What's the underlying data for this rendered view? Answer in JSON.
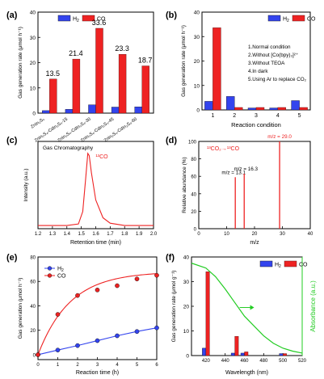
{
  "colors": {
    "h2": "#3344ee",
    "co": "#ee2222",
    "green": "#22cc22",
    "axis": "#000000"
  },
  "chart_data": [
    {
      "panel": "(a)",
      "type": "bar",
      "ylabel": "Gas generation rate (μmol h⁻¹)",
      "ylim": [
        0,
        40
      ],
      "yticks": [
        0,
        10,
        20,
        30,
        40
      ],
      "legend": [
        "H₂",
        "CO"
      ],
      "categories": [
        "ZnIn₂S₄",
        "ZnIn₂S₄-CdIn₂S₄-15",
        "ZnIn₂S₄-CdIn₂S₄-30",
        "ZnIn₂S₄-CdIn₂S₄-45",
        "ZnIn₂S₄-CdIn₂S₄-60"
      ],
      "series": [
        {
          "name": "H₂",
          "values": [
            1.0,
            1.5,
            3.3,
            2.4,
            2.5
          ]
        },
        {
          "name": "CO",
          "values": [
            13.5,
            21.4,
            33.6,
            23.3,
            18.7
          ]
        }
      ],
      "data_labels": [
        "13.5",
        "21.4",
        "33.6",
        "23.3",
        "18.7"
      ]
    },
    {
      "panel": "(b)",
      "type": "bar",
      "xlabel": "Reaction condition",
      "ylabel": "Gas generation rate (μmol h⁻¹)",
      "ylim": [
        0,
        40
      ],
      "yticks": [
        0,
        10,
        20,
        30,
        40
      ],
      "legend": [
        "H₂",
        "CO"
      ],
      "categories": [
        "1",
        "2",
        "3",
        "4",
        "5"
      ],
      "series": [
        {
          "name": "H₂",
          "values": [
            3.5,
            5.5,
            0.8,
            0.8,
            3.8
          ]
        },
        {
          "name": "CO",
          "values": [
            33.6,
            1.0,
            1.0,
            1.0,
            1.0
          ]
        }
      ],
      "annotations": [
        "1.Normal condition",
        "2.Without [Co(bpy)₃]²⁺",
        "3.Without TEOA",
        "4.In dark",
        "5.Using Ar to replace CO₂"
      ]
    },
    {
      "panel": "(c)",
      "type": "line",
      "title": "Gas Chromatography",
      "xlabel": "Retention time (min)",
      "ylabel": "Intensity (a.u.)",
      "xlim": [
        1.2,
        2.0
      ],
      "xticks": [
        "1.2",
        "1.3",
        "1.4",
        "1.5",
        "1.6",
        "1.7",
        "1.8",
        "1.9",
        "2.0"
      ],
      "peak_label": "¹³CO",
      "x": [
        1.2,
        1.4,
        1.48,
        1.51,
        1.53,
        1.545,
        1.555,
        1.57,
        1.6,
        1.65,
        1.7,
        1.8,
        1.9,
        2.0
      ],
      "y": [
        0.02,
        0.02,
        0.04,
        0.2,
        0.62,
        0.95,
        0.92,
        0.7,
        0.35,
        0.12,
        0.05,
        0.02,
        0.02,
        0.02
      ]
    },
    {
      "panel": "(d)",
      "type": "bar",
      "xlabel": "m/z",
      "ylabel": "Relative abundance (%)",
      "xlim": [
        0,
        40
      ],
      "xticks": [
        0,
        10,
        20,
        30,
        40
      ],
      "ylim": [
        0,
        100
      ],
      "yticks": [
        0,
        20,
        40,
        60,
        80,
        100
      ],
      "annotation": "¹³CO₂→¹³CO",
      "peaks": [
        {
          "mz": 13.1,
          "abundance": 59,
          "label": "m/z = 13.1"
        },
        {
          "mz": 16.3,
          "abundance": 63,
          "label": "m/z = 16.3"
        },
        {
          "mz": 29.0,
          "abundance": 100,
          "label": "m/z = 29.0"
        }
      ]
    },
    {
      "panel": "(e)",
      "type": "line",
      "xlabel": "Reaction time (h)",
      "ylabel": "Gas generation (μmol h⁻¹)",
      "xlim": [
        0,
        6
      ],
      "xticks": [
        0,
        1,
        2,
        3,
        4,
        5,
        6
      ],
      "ylim": [
        -4,
        80
      ],
      "yticks": [
        0,
        20,
        40,
        60,
        80
      ],
      "x": [
        0,
        1,
        2,
        3,
        4,
        5,
        6
      ],
      "series": [
        {
          "name": "H₂",
          "values": [
            0,
            3.8,
            7.5,
            11.5,
            15.5,
            19.0,
            22.0
          ]
        },
        {
          "name": "CO",
          "values": [
            0,
            33.0,
            48.5,
            53.0,
            56.5,
            62.0,
            65.0
          ]
        }
      ]
    },
    {
      "panel": "(f)",
      "type": "bar",
      "xlabel": "Wavelength (nm)",
      "ylabel": "Gas generation rate (μmol g⁻¹)",
      "y2label": "Absorbance (a.u.)",
      "xlim": [
        405,
        520
      ],
      "xticks": [
        420,
        440,
        460,
        480,
        500,
        520
      ],
      "ylim": [
        0,
        40
      ],
      "yticks": [
        0,
        10,
        20,
        30,
        40
      ],
      "legend": [
        "H₂",
        "CO"
      ],
      "categories": [
        420,
        450,
        460,
        500
      ],
      "series": [
        {
          "name": "H₂",
          "values": [
            3.0,
            1.0,
            1.0,
            0.8
          ]
        },
        {
          "name": "CO",
          "values": [
            34.0,
            7.8,
            1.5,
            0.8
          ]
        }
      ],
      "absorbance": {
        "x": [
          405,
          420,
          430,
          440,
          450,
          460,
          470,
          480,
          490,
          500,
          510,
          520
        ],
        "y": [
          37.5,
          35.5,
          32.0,
          27.0,
          21.5,
          16.0,
          12.0,
          8.0,
          5.0,
          3.0,
          1.8,
          1.0
        ]
      }
    }
  ]
}
